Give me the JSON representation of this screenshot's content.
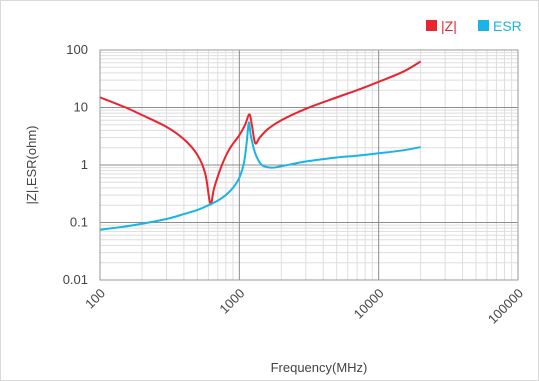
{
  "chart_data": {
    "type": "line",
    "xlabel": "Frequency(MHz)",
    "ylabel": "|Z|,ESR(ohm)",
    "x_scale": "log",
    "y_scale": "log",
    "xlim": [
      100,
      100000
    ],
    "ylim": [
      0.01,
      100
    ],
    "x_ticks": [
      "100",
      "1000",
      "10000",
      "100000"
    ],
    "y_ticks": [
      "100",
      "10",
      "1",
      "0.1",
      "0.01"
    ],
    "grid": true,
    "legend_position": "top-right",
    "series": [
      {
        "name": "|Z|",
        "color": "#e8242f",
        "points": [
          [
            100,
            15
          ],
          [
            150,
            10.2
          ],
          [
            200,
            7.4
          ],
          [
            300,
            4.6
          ],
          [
            400,
            2.8
          ],
          [
            500,
            1.5
          ],
          [
            570,
            0.7
          ],
          [
            620,
            0.21
          ],
          [
            660,
            0.4
          ],
          [
            750,
            1.0
          ],
          [
            850,
            1.9
          ],
          [
            1000,
            3.3
          ],
          [
            1100,
            5.0
          ],
          [
            1180,
            7.6
          ],
          [
            1230,
            5.0
          ],
          [
            1300,
            2.4
          ],
          [
            1400,
            3.0
          ],
          [
            1600,
            4.2
          ],
          [
            2000,
            6.0
          ],
          [
            3000,
            9.5
          ],
          [
            5000,
            15
          ],
          [
            7000,
            20
          ],
          [
            10000,
            28
          ],
          [
            15000,
            42
          ],
          [
            20000,
            63
          ]
        ]
      },
      {
        "name": "ESR",
        "color": "#1ab3e6",
        "points": [
          [
            100,
            0.075
          ],
          [
            150,
            0.085
          ],
          [
            200,
            0.095
          ],
          [
            300,
            0.115
          ],
          [
            400,
            0.14
          ],
          [
            500,
            0.165
          ],
          [
            600,
            0.2
          ],
          [
            700,
            0.24
          ],
          [
            800,
            0.3
          ],
          [
            900,
            0.4
          ],
          [
            1000,
            0.6
          ],
          [
            1080,
            1.1
          ],
          [
            1130,
            2.5
          ],
          [
            1170,
            5.5
          ],
          [
            1210,
            3.2
          ],
          [
            1300,
            1.6
          ],
          [
            1450,
            1.0
          ],
          [
            1700,
            0.9
          ],
          [
            2000,
            0.95
          ],
          [
            3000,
            1.15
          ],
          [
            5000,
            1.35
          ],
          [
            7000,
            1.45
          ],
          [
            10000,
            1.6
          ],
          [
            15000,
            1.8
          ],
          [
            20000,
            2.05
          ]
        ]
      }
    ]
  }
}
